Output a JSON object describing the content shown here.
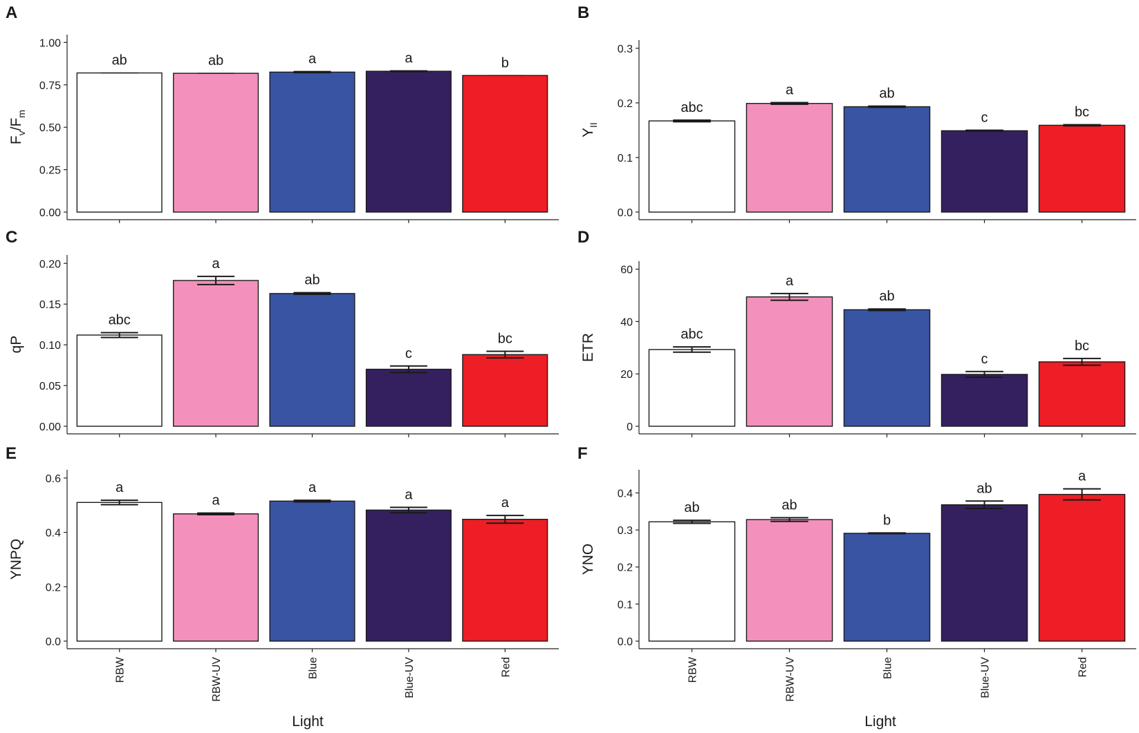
{
  "figure": {
    "xlabel": "Light"
  },
  "colors": {
    "RBW": "#ffffff",
    "RBW-UV": "#f391bc",
    "Blue": "#3854a3",
    "Blue-UV": "#35205f",
    "Red": "#ed1e25"
  },
  "chart_data": [
    {
      "panel": "A",
      "type": "bar",
      "ylabel_main": "F",
      "ylabel_sub1": "v",
      "ylabel_slash": "/",
      "ylabel_main2": "F",
      "ylabel_sub2": "m",
      "categories": [
        "RBW",
        "RBW-UV",
        "Blue",
        "Blue-UV",
        "Red"
      ],
      "values": [
        0.82,
        0.818,
        0.825,
        0.83,
        0.805
      ],
      "errors": [
        0,
        0,
        0.003,
        0.002,
        0
      ],
      "letters": [
        "ab",
        "ab",
        "a",
        "a",
        "b"
      ],
      "ylim": [
        0,
        1.03
      ],
      "yticks": [
        "0.00",
        "0.25",
        "0.50",
        "0.75",
        "1.00"
      ],
      "ytick_values": [
        0,
        0.25,
        0.5,
        0.75,
        1.0
      ]
    },
    {
      "panel": "B",
      "type": "bar",
      "ylabel_main": "Y",
      "ylabel_sub1": "II",
      "categories": [
        "RBW",
        "RBW-UV",
        "Blue",
        "Blue-UV",
        "Red"
      ],
      "values": [
        0.167,
        0.199,
        0.193,
        0.149,
        0.159
      ],
      "errors": [
        0.0015,
        0.0015,
        0.001,
        0.001,
        0.001
      ],
      "letters": [
        "abc",
        "a",
        "ab",
        "c",
        "bc"
      ],
      "ylim": [
        0,
        0.31
      ],
      "yticks": [
        "0.0",
        "0.1",
        "0.2",
        "0.3"
      ],
      "ytick_values": [
        0,
        0.1,
        0.2,
        0.3
      ]
    },
    {
      "panel": "C",
      "type": "bar",
      "ylabel": "qP",
      "categories": [
        "RBW",
        "RBW-UV",
        "Blue",
        "Blue-UV",
        "Red"
      ],
      "values": [
        0.112,
        0.179,
        0.163,
        0.07,
        0.088
      ],
      "errors": [
        0.003,
        0.005,
        0.001,
        0.004,
        0.004
      ],
      "letters": [
        "abc",
        "a",
        "ab",
        "c",
        "bc"
      ],
      "ylim": [
        0,
        0.207
      ],
      "yticks": [
        "0.00",
        "0.05",
        "0.10",
        "0.15",
        "0.20"
      ],
      "ytick_values": [
        0,
        0.05,
        0.1,
        0.15,
        0.2
      ]
    },
    {
      "panel": "D",
      "type": "bar",
      "ylabel": "ETR",
      "categories": [
        "RBW",
        "RBW-UV",
        "Blue",
        "Blue-UV",
        "Red"
      ],
      "values": [
        29.3,
        49.4,
        44.5,
        19.8,
        24.6
      ],
      "errors": [
        1.0,
        1.3,
        0.3,
        1.1,
        1.3
      ],
      "letters": [
        "abc",
        "a",
        "ab",
        "c",
        "bc"
      ],
      "ylim": [
        0,
        62
      ],
      "yticks": [
        "0",
        "20",
        "40",
        "60"
      ],
      "ytick_values": [
        0,
        20,
        40,
        60
      ]
    },
    {
      "panel": "E",
      "type": "bar",
      "ylabel": "YNPQ",
      "categories": [
        "RBW",
        "RBW-UV",
        "Blue",
        "Blue-UV",
        "Red"
      ],
      "values": [
        0.51,
        0.468,
        0.515,
        0.482,
        0.448
      ],
      "errors": [
        0.008,
        0.003,
        0.003,
        0.01,
        0.014
      ],
      "letters": [
        "a",
        "a",
        "a",
        "a",
        "a"
      ],
      "ylim": [
        0,
        0.62
      ],
      "yticks": [
        "0.0",
        "0.2",
        "0.4",
        "0.6"
      ],
      "ytick_values": [
        0,
        0.2,
        0.4,
        0.6
      ]
    },
    {
      "panel": "F",
      "type": "bar",
      "ylabel": "YNO",
      "categories": [
        "RBW",
        "RBW-UV",
        "Blue",
        "Blue-UV",
        "Red"
      ],
      "values": [
        0.322,
        0.328,
        0.291,
        0.368,
        0.396
      ],
      "errors": [
        0.004,
        0.005,
        0.001,
        0.01,
        0.015
      ],
      "letters": [
        "ab",
        "ab",
        "b",
        "ab",
        "a"
      ],
      "ylim": [
        0,
        0.455
      ],
      "yticks": [
        "0.0",
        "0.1",
        "0.2",
        "0.3",
        "0.4"
      ],
      "ytick_values": [
        0,
        0.1,
        0.2,
        0.3,
        0.4
      ]
    }
  ]
}
